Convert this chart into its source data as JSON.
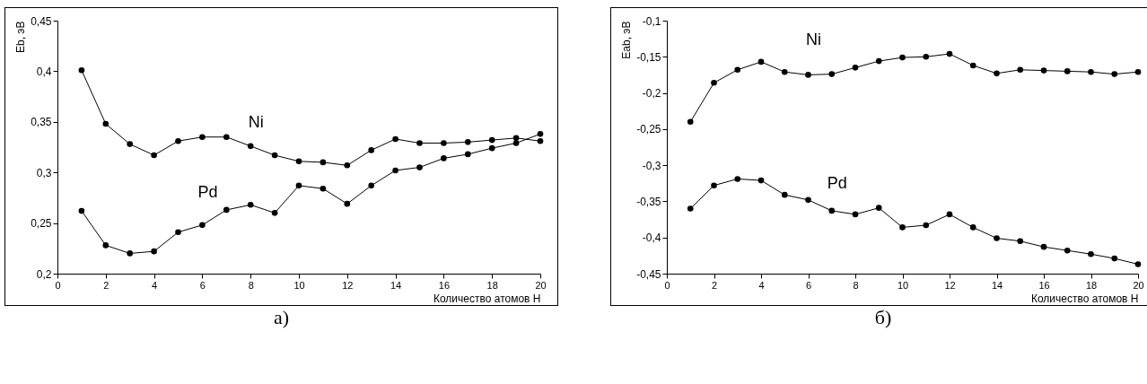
{
  "chart_data": [
    {
      "type": "line",
      "xlabel": "Количество атомов Н",
      "ylabel": "Eb, эВ",
      "annotations": [
        "а)"
      ],
      "marker": "circle",
      "line_style": "solid",
      "grid": false,
      "legend": false,
      "x": [
        1,
        2,
        3,
        4,
        5,
        6,
        7,
        8,
        9,
        10,
        11,
        12,
        13,
        14,
        15,
        16,
        17,
        18,
        19,
        20
      ],
      "xlim": [
        0,
        20
      ],
      "xticks": [
        0,
        2,
        4,
        6,
        8,
        10,
        12,
        14,
        16,
        18,
        20
      ],
      "ylim": [
        0.2,
        0.45
      ],
      "yticks": [
        {
          "value": 0.2,
          "label": "0,2"
        },
        {
          "value": 0.25,
          "label": "0,25"
        },
        {
          "value": 0.3,
          "label": "0,3"
        },
        {
          "value": 0.35,
          "label": "0,35"
        },
        {
          "value": 0.4,
          "label": "0,4"
        },
        {
          "value": 0.45,
          "label": "0,45"
        }
      ],
      "series": [
        {
          "name": "Ni",
          "color": "#000000",
          "values": [
            0.401,
            0.348,
            0.328,
            0.317,
            0.331,
            0.335,
            0.335,
            0.326,
            0.317,
            0.311,
            0.31,
            0.307,
            0.322,
            0.333,
            0.329,
            0.329,
            0.33,
            0.332,
            0.334,
            0.331
          ]
        },
        {
          "name": "Pd",
          "color": "#000000",
          "values": [
            0.262,
            0.228,
            0.22,
            0.222,
            0.241,
            0.248,
            0.263,
            0.268,
            0.26,
            0.287,
            0.284,
            0.269,
            0.287,
            0.302,
            0.305,
            0.314,
            0.318,
            0.324,
            0.329,
            0.338
          ]
        }
      ]
    },
    {
      "type": "line",
      "xlabel": "Количество атомов Н",
      "ylabel": "Eab, эВ",
      "annotations": [
        "б)"
      ],
      "marker": "circle",
      "line_style": "solid",
      "grid": false,
      "legend": false,
      "x": [
        1,
        2,
        3,
        4,
        5,
        6,
        7,
        8,
        9,
        10,
        11,
        12,
        13,
        14,
        15,
        16,
        17,
        18,
        19,
        20
      ],
      "xlim": [
        0,
        20
      ],
      "xticks": [
        0,
        2,
        4,
        6,
        8,
        10,
        12,
        14,
        16,
        18,
        20
      ],
      "ylim": [
        -0.45,
        -0.1
      ],
      "yticks": [
        {
          "value": -0.45,
          "label": "-0,45"
        },
        {
          "value": -0.4,
          "label": "-0,4"
        },
        {
          "value": -0.35,
          "label": "-0,35"
        },
        {
          "value": -0.3,
          "label": "-0,3"
        },
        {
          "value": -0.25,
          "label": "-0,25"
        },
        {
          "value": -0.2,
          "label": "-0,2"
        },
        {
          "value": -0.15,
          "label": "-0,15"
        },
        {
          "value": -0.1,
          "label": "-0,1"
        }
      ],
      "series": [
        {
          "name": "Ni",
          "color": "#000000",
          "values": [
            -0.24,
            -0.186,
            -0.168,
            -0.157,
            -0.171,
            -0.175,
            -0.174,
            -0.165,
            -0.156,
            -0.151,
            -0.15,
            -0.146,
            -0.162,
            -0.173,
            -0.168,
            -0.169,
            -0.17,
            -0.171,
            -0.174,
            -0.171
          ]
        },
        {
          "name": "Pd",
          "color": "#000000",
          "values": [
            -0.36,
            -0.328,
            -0.319,
            -0.321,
            -0.341,
            -0.348,
            -0.363,
            -0.368,
            -0.359,
            -0.386,
            -0.383,
            -0.368,
            -0.386,
            -0.401,
            -0.405,
            -0.413,
            -0.418,
            -0.423,
            -0.429,
            -0.437
          ]
        }
      ]
    }
  ]
}
